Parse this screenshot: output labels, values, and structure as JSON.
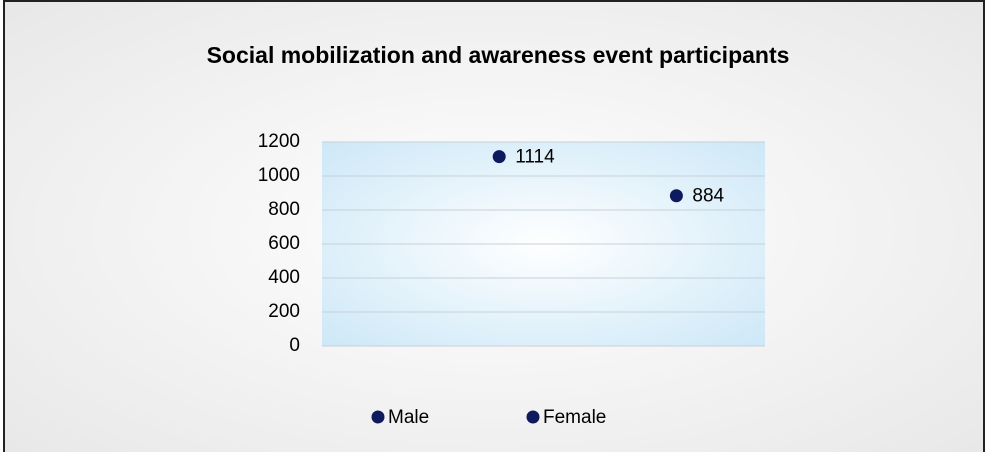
{
  "chart_data": {
    "type": "scatter",
    "title": "Social mobilization and awareness event participants",
    "series": [
      {
        "name": "Male",
        "color": "#0d1a5e",
        "values": [
          1114
        ]
      },
      {
        "name": "Female",
        "color": "#0d1a5e",
        "values": [
          884
        ]
      }
    ],
    "ylim": [
      0,
      1200
    ],
    "yticks": [
      0,
      200,
      400,
      600,
      800,
      1000,
      1200
    ],
    "grid": true,
    "legend": "bottom"
  }
}
